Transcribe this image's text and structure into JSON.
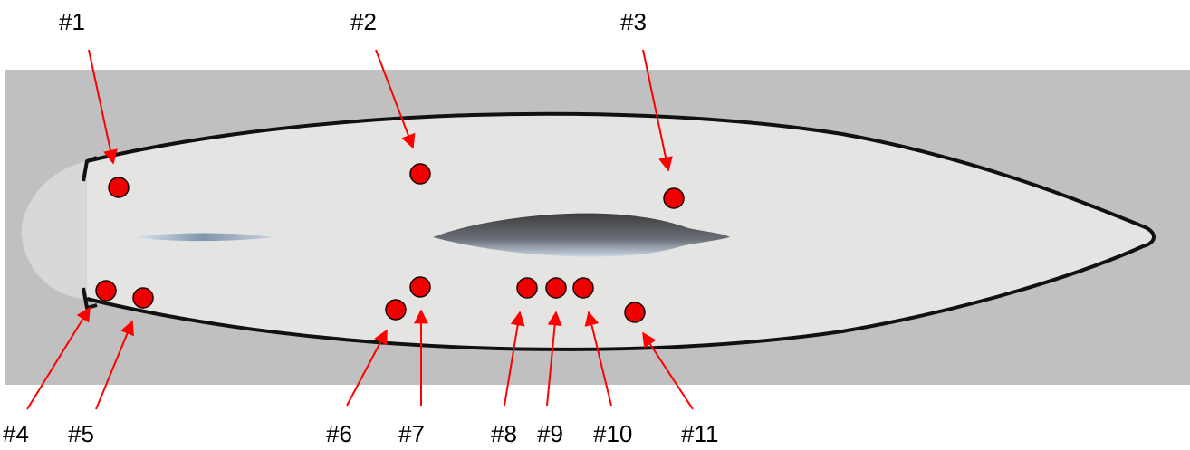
{
  "colors": {
    "background": "#c0c0c0",
    "hull_fill": "#e4e4e2",
    "hull_outline": "#111111",
    "marker": "#ee0000",
    "arrow": "#ff0000",
    "label": "#000000"
  },
  "labels": [
    "#1",
    "#2",
    "#3",
    "#4",
    "#5",
    "#6",
    "#7",
    "#8",
    "#9",
    "#10",
    "#11"
  ]
}
